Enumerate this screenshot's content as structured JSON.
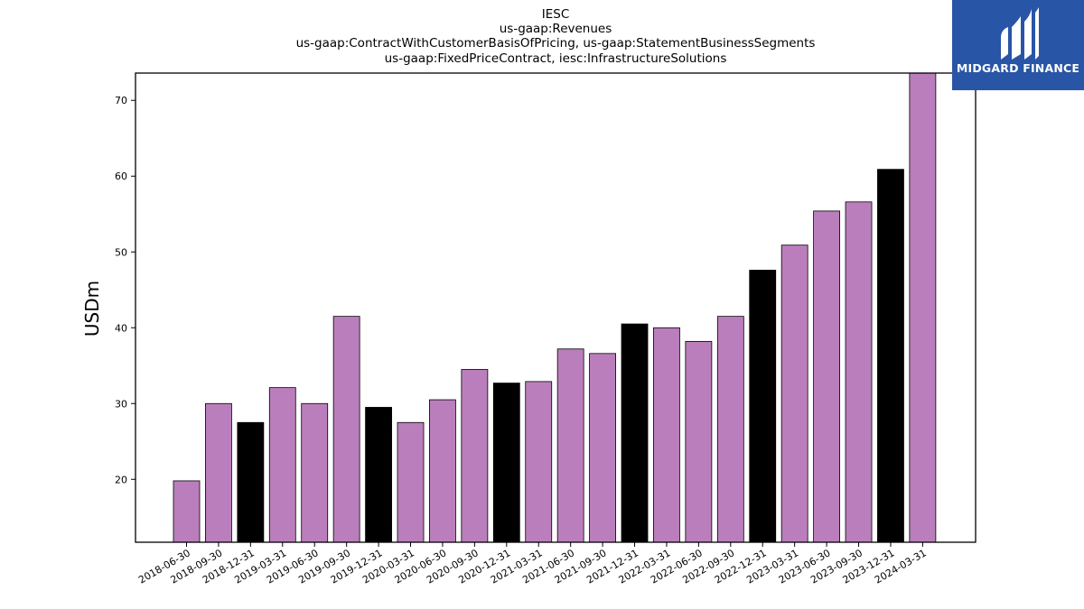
{
  "logo": {
    "text": "MIDGARD FINANCE",
    "background": "#2855a6"
  },
  "chart_data": {
    "type": "bar",
    "title_lines": [
      "IESC",
      "us-gaap:Revenues",
      "us-gaap:ContractWithCustomerBasisOfPricing, us-gaap:StatementBusinessSegments",
      "us-gaap:FixedPriceContract, iesc:InfrastructureSolutions"
    ],
    "ylabel": "USDm",
    "xlabel": "",
    "ylim": [
      11.7,
      73.6
    ],
    "yticks": [
      20,
      30,
      40,
      50,
      60,
      70
    ],
    "categories": [
      "2018-06-30",
      "2018-09-30",
      "2018-12-31",
      "2019-03-31",
      "2019-06-30",
      "2019-09-30",
      "2019-12-31",
      "2020-03-31",
      "2020-06-30",
      "2020-09-30",
      "2020-12-31",
      "2021-03-31",
      "2021-06-30",
      "2021-09-30",
      "2021-12-31",
      "2022-03-31",
      "2022-06-30",
      "2022-09-30",
      "2022-12-31",
      "2023-03-31",
      "2023-06-30",
      "2023-09-30",
      "2023-12-31",
      "2024-03-31"
    ],
    "values": [
      19.8,
      30.0,
      27.5,
      32.1,
      30.0,
      41.5,
      29.5,
      27.5,
      30.5,
      34.5,
      32.7,
      32.9,
      37.2,
      36.6,
      40.5,
      40.0,
      38.2,
      41.5,
      47.6,
      50.9,
      55.4,
      56.6,
      60.9,
      73.6
    ],
    "bar_colors": [
      "#bb7ebd",
      "#bb7ebd",
      "#000000",
      "#bb7ebd",
      "#bb7ebd",
      "#bb7ebd",
      "#000000",
      "#bb7ebd",
      "#bb7ebd",
      "#bb7ebd",
      "#000000",
      "#bb7ebd",
      "#bb7ebd",
      "#bb7ebd",
      "#000000",
      "#bb7ebd",
      "#bb7ebd",
      "#bb7ebd",
      "#000000",
      "#bb7ebd",
      "#bb7ebd",
      "#bb7ebd",
      "#000000",
      "#bb7ebd"
    ],
    "grid": false,
    "legend": "none"
  }
}
